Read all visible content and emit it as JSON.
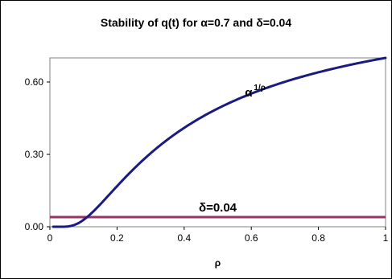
{
  "chart_data": {
    "type": "line",
    "title": "Stability of q(t) for α=0.7 and δ=0.04",
    "xlabel": "ρ",
    "ylabel": "",
    "xlim": [
      0,
      1
    ],
    "ylim": [
      0,
      0.7
    ],
    "x_ticks": [
      0,
      0.2,
      0.4,
      0.6,
      0.8,
      1
    ],
    "x_tick_labels": [
      "0",
      "0.2",
      "0.4",
      "0.6",
      "0.8",
      "1"
    ],
    "y_ticks": [
      0,
      0.3,
      0.6
    ],
    "y_tick_labels": [
      "0.00",
      "0.30",
      "0.60"
    ],
    "grid": false,
    "legend": "none",
    "series": [
      {
        "color": "#1a1a80",
        "formula": "alpha^(1/rho)",
        "alpha": 0.7
      },
      {
        "color": "#993366",
        "constant": 0.04
      }
    ],
    "annotations": [
      {
        "text": "α",
        "superscript": "1/ρ",
        "x": 0.6,
        "y": 0.56
      },
      {
        "text": "δ=0.04",
        "x": 0.5,
        "y": 0.08
      }
    ]
  }
}
